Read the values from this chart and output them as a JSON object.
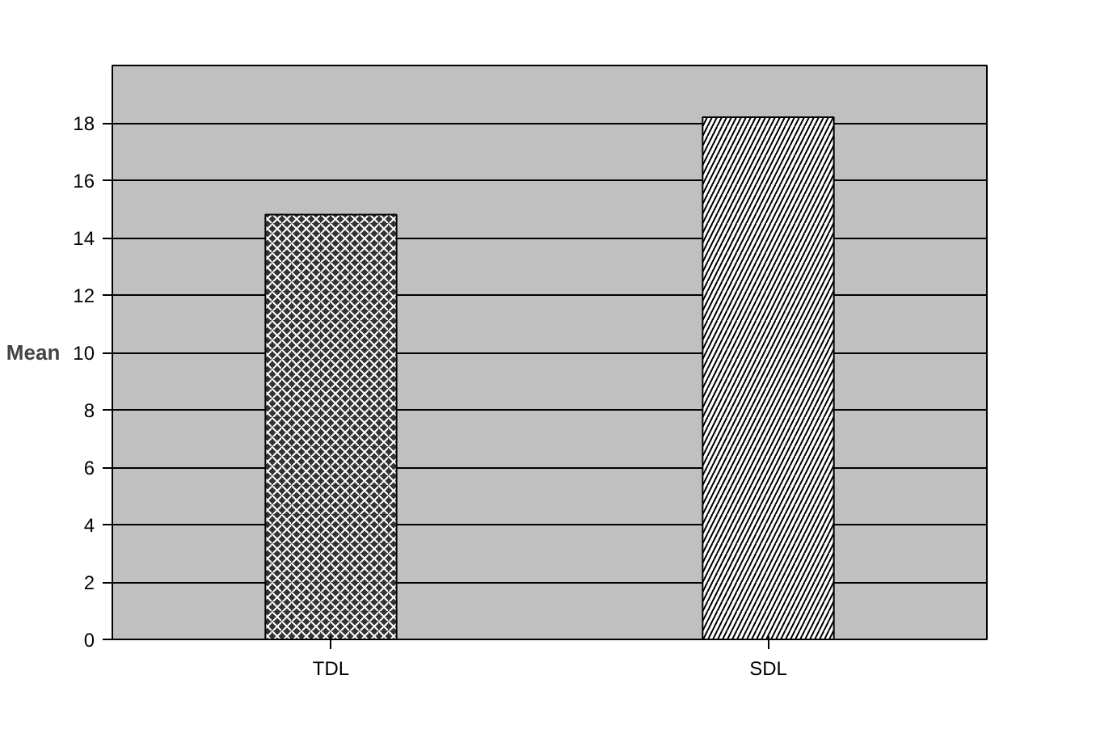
{
  "chart_data": {
    "type": "bar",
    "ylabel": "Mean",
    "categories": [
      "TDL",
      "SDL"
    ],
    "values": [
      14.8,
      18.2
    ],
    "colors": [
      "#333333",
      "#ffffff"
    ],
    "ylim": [
      0,
      20
    ],
    "yticks": [
      0,
      2,
      4,
      6,
      8,
      10,
      12,
      14,
      16,
      18
    ],
    "grid": "y"
  }
}
